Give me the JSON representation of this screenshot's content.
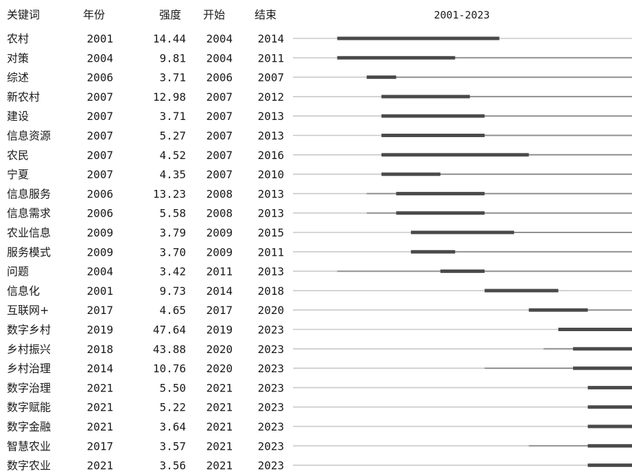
{
  "chart_data": {
    "type": "table",
    "subtype": "citespace-burst-timeline",
    "headers": {
      "keyword": "关键词",
      "year": "年份",
      "strength": "强度",
      "begin": "开始",
      "end": "结束",
      "range": "2001-2023"
    },
    "x_range": [
      2001,
      2023
    ],
    "colors": {
      "text": "#1a1a1a",
      "baseline": "#c8c8c8",
      "active": "#8f8f8f",
      "burst": "#4a4a4a"
    },
    "rows": [
      {
        "keyword": "农村",
        "year": "2001",
        "strength": "14.44",
        "begin": "2004",
        "end": "2014"
      },
      {
        "keyword": "对策",
        "year": "2004",
        "strength": "9.81",
        "begin": "2004",
        "end": "2011"
      },
      {
        "keyword": "综述",
        "year": "2006",
        "strength": "3.71",
        "begin": "2006",
        "end": "2007"
      },
      {
        "keyword": "新农村",
        "year": "2007",
        "strength": "12.98",
        "begin": "2007",
        "end": "2012"
      },
      {
        "keyword": "建设",
        "year": "2007",
        "strength": "3.71",
        "begin": "2007",
        "end": "2013"
      },
      {
        "keyword": "信息资源",
        "year": "2007",
        "strength": "5.27",
        "begin": "2007",
        "end": "2013"
      },
      {
        "keyword": "农民",
        "year": "2007",
        "strength": "4.52",
        "begin": "2007",
        "end": "2016"
      },
      {
        "keyword": "宁夏",
        "year": "2007",
        "strength": "4.35",
        "begin": "2007",
        "end": "2010"
      },
      {
        "keyword": "信息服务",
        "year": "2006",
        "strength": "13.23",
        "begin": "2008",
        "end": "2013"
      },
      {
        "keyword": "信息需求",
        "year": "2006",
        "strength": "5.58",
        "begin": "2008",
        "end": "2013"
      },
      {
        "keyword": "农业信息",
        "year": "2009",
        "strength": "3.79",
        "begin": "2009",
        "end": "2015"
      },
      {
        "keyword": "服务模式",
        "year": "2009",
        "strength": "3.70",
        "begin": "2009",
        "end": "2011"
      },
      {
        "keyword": "问题",
        "year": "2004",
        "strength": "3.42",
        "begin": "2011",
        "end": "2013"
      },
      {
        "keyword": "信息化",
        "year": "2001",
        "strength": "9.73",
        "begin": "2014",
        "end": "2018"
      },
      {
        "keyword": "互联网+",
        "year": "2017",
        "strength": "4.65",
        "begin": "2017",
        "end": "2020"
      },
      {
        "keyword": "数字乡村",
        "year": "2019",
        "strength": "47.64",
        "begin": "2019",
        "end": "2023"
      },
      {
        "keyword": "乡村振兴",
        "year": "2018",
        "strength": "43.88",
        "begin": "2020",
        "end": "2023"
      },
      {
        "keyword": "乡村治理",
        "year": "2014",
        "strength": "10.76",
        "begin": "2020",
        "end": "2023"
      },
      {
        "keyword": "数字治理",
        "year": "2021",
        "strength": "5.50",
        "begin": "2021",
        "end": "2023"
      },
      {
        "keyword": "数字赋能",
        "year": "2021",
        "strength": "5.22",
        "begin": "2021",
        "end": "2023"
      },
      {
        "keyword": "数字金融",
        "year": "2021",
        "strength": "3.64",
        "begin": "2021",
        "end": "2023"
      },
      {
        "keyword": "智慧农业",
        "year": "2017",
        "strength": "3.57",
        "begin": "2021",
        "end": "2023"
      },
      {
        "keyword": "数字农业",
        "year": "2021",
        "strength": "3.56",
        "begin": "2021",
        "end": "2023"
      }
    ]
  }
}
